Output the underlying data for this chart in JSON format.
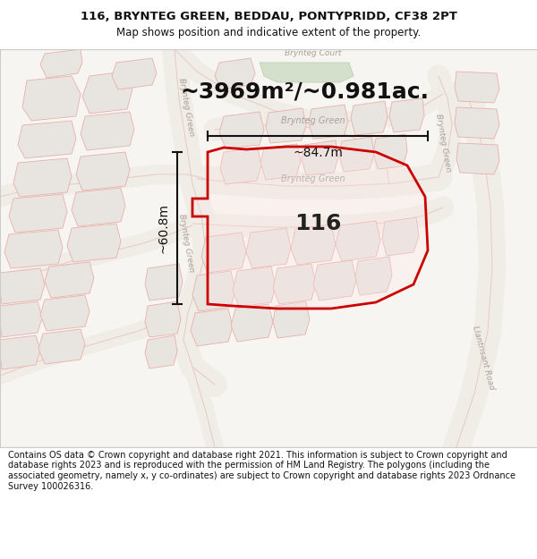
{
  "title_line1": "116, BRYNTEG GREEN, BEDDAU, PONTYPRIDD, CF38 2PT",
  "title_line2": "Map shows position and indicative extent of the property.",
  "area_text": "~3969m²/~0.981ac.",
  "label_116": "116",
  "dim_vertical": "~60.8m",
  "dim_horizontal": "~84.7m",
  "footer_text": "Contains OS data © Crown copyright and database right 2021. This information is subject to Crown copyright and database rights 2023 and is reproduced with the permission of HM Land Registry. The polygons (including the associated geometry, namely x, y co-ordinates) are subject to Crown copyright and database rights 2023 Ordnance Survey 100026316.",
  "map_bg": "#f7f5f2",
  "road_outline_color": "#e8c8c4",
  "building_fill": "#e8e4e0",
  "building_edge": "#e8b0aa",
  "green_fill": "#d4e0cc",
  "highlight_edge": "#cc0000",
  "fig_width": 6.0,
  "fig_height": 6.25,
  "title_fontsize": 9.5,
  "subtitle_fontsize": 8.5,
  "area_fontsize": 18,
  "label_fontsize": 18,
  "dim_fontsize": 10,
  "footer_fontsize": 7.0
}
